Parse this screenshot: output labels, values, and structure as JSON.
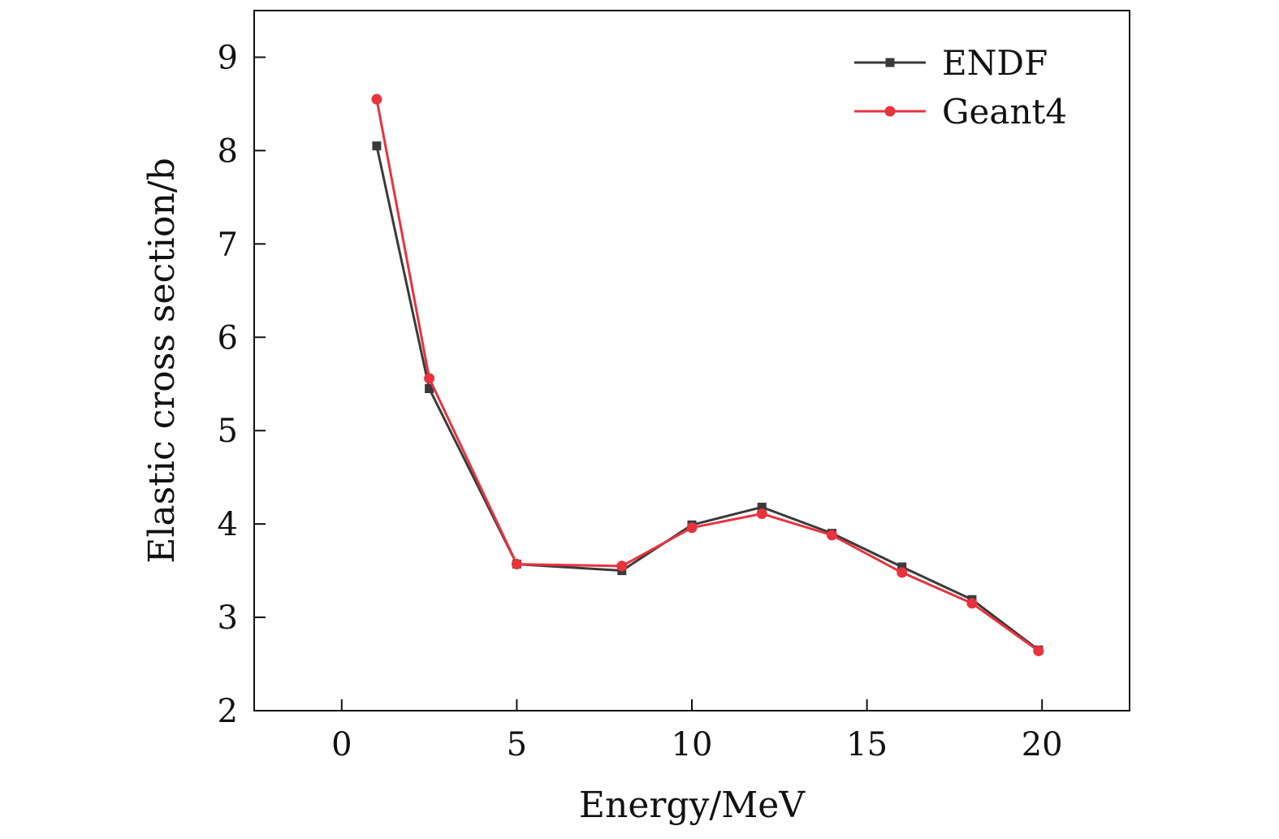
{
  "chart_data": {
    "type": "line",
    "xlabel": "Energy/MeV",
    "ylabel": "Elastic cross section/b",
    "xlim": [
      -2.5,
      22.5
    ],
    "ylim": [
      2,
      9.5
    ],
    "xticks": [
      0,
      5,
      10,
      15,
      20
    ],
    "yticks": [
      2,
      3,
      4,
      5,
      6,
      7,
      8,
      9
    ],
    "grid": false,
    "legend_position": "top-right",
    "series": [
      {
        "name": "ENDF",
        "color": "#3a3a3a",
        "marker": "square",
        "x": [
          1,
          2.5,
          5,
          8,
          10,
          12,
          14,
          16,
          18,
          19.9
        ],
        "y": [
          8.05,
          5.45,
          3.57,
          3.5,
          3.99,
          4.18,
          3.9,
          3.54,
          3.19,
          2.65
        ]
      },
      {
        "name": "Geant4",
        "color": "#e8333f",
        "marker": "circle",
        "x": [
          1,
          2.5,
          5,
          8,
          10,
          12,
          14,
          16,
          18,
          19.9
        ],
        "y": [
          8.55,
          5.56,
          3.57,
          3.55,
          3.96,
          4.11,
          3.88,
          3.48,
          3.15,
          2.64
        ]
      }
    ]
  }
}
